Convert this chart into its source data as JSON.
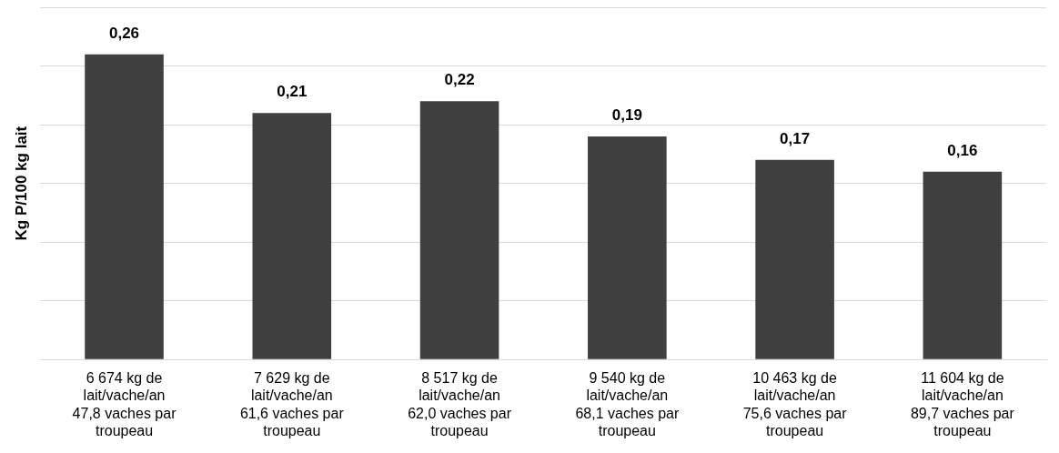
{
  "chart_data": {
    "type": "bar",
    "ylabel": "Kg P/100 kg lait",
    "categories": [
      "6 674 kg de lait/vache/an 47,8 vaches par troupeau",
      "7 629 kg de lait/vache/an 61,6 vaches par troupeau",
      "8 517 kg de lait/vache/an 62,0 vaches par troupeau",
      "9 540 kg de lait/vache/an 68,1 vaches par troupeau",
      "10 463 kg de lait/vache/an 75,6 vaches par troupeau",
      "11 604 kg de lait/vache/an 89,7 vaches par troupeau"
    ],
    "values": [
      0.26,
      0.21,
      0.22,
      0.19,
      0.17,
      0.16
    ],
    "value_labels": [
      "0,26",
      "0,21",
      "0,22",
      "0,19",
      "0,17",
      "0,16"
    ],
    "color": "#404040",
    "ylim": [
      0,
      0.3
    ],
    "yticks": [
      {
        "value": 0,
        "label": null
      },
      {
        "value": 0.05,
        "label": null
      },
      {
        "value": 0.1,
        "label": null
      },
      {
        "value": 0.15,
        "label": null
      },
      {
        "value": 0.2,
        "label": null
      },
      {
        "value": 0.25,
        "label": null
      },
      {
        "value": 0.3,
        "label": null
      }
    ],
    "grid": "y",
    "tick_labels": "x",
    "legend": false
  }
}
